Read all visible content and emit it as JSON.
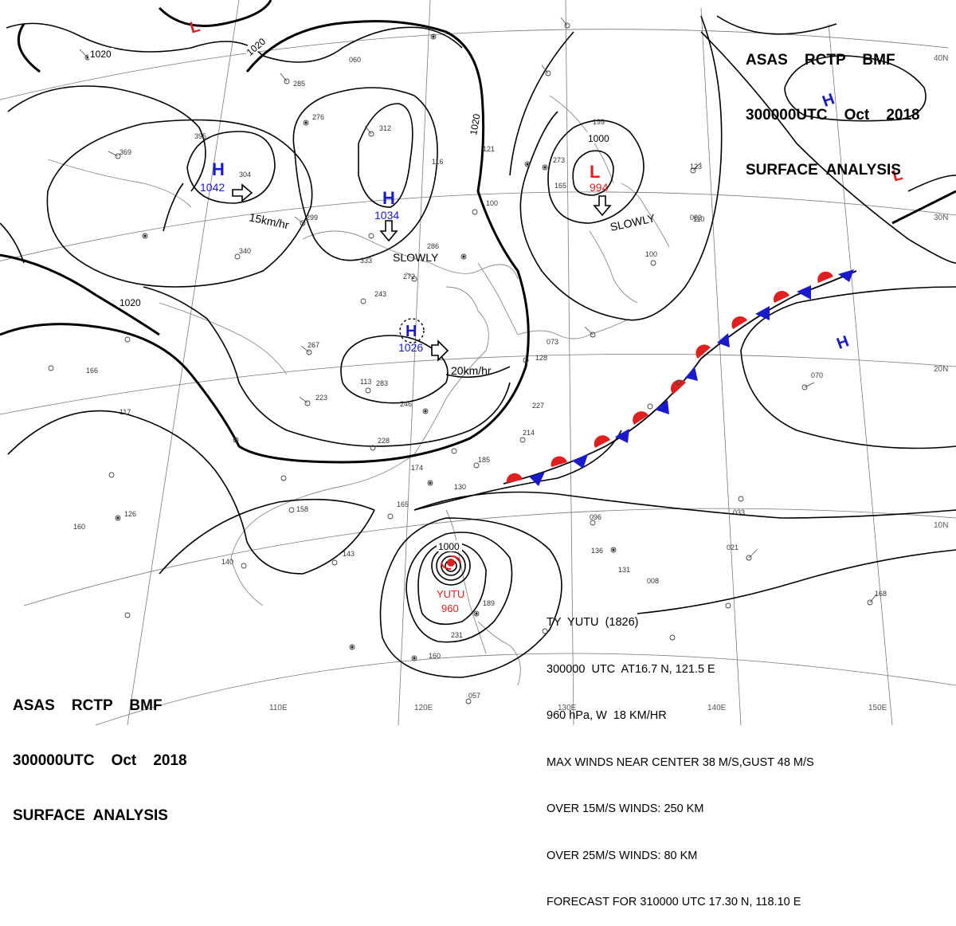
{
  "header_top_right": {
    "line1": "ASAS    RCTP    BMF",
    "line2": "300000UTC    Oct    2018",
    "line3": "SURFACE  ANALYSIS"
  },
  "header_bottom_left": {
    "line1": "ASAS    RCTP    BMF",
    "line2": "300000UTC    Oct    2018",
    "line3": "SURFACE  ANALYSIS"
  },
  "latitude_labels": [
    "40N",
    "30N",
    "20N",
    "10N"
  ],
  "longitude_labels": [
    "110E",
    "120E",
    "130E",
    "140E",
    "150E"
  ],
  "isobar_labels": [
    "1020",
    "1020",
    "1020",
    "1020",
    "1000",
    "1000"
  ],
  "pressure_centers": [
    {
      "type": "H",
      "value": "1042",
      "color": "#1a1acc"
    },
    {
      "type": "H",
      "value": "1034",
      "color": "#1a1acc"
    },
    {
      "type": "H",
      "value": "1026",
      "color": "#1a1acc"
    },
    {
      "type": "L",
      "value": "994",
      "color": "#e02020"
    },
    {
      "type": "L",
      "value": "",
      "color": "#e02020"
    },
    {
      "type": "L",
      "value": "",
      "color": "#e02020"
    },
    {
      "type": "H",
      "value": "",
      "color": "#1a1acc"
    },
    {
      "type": "H",
      "value": "",
      "color": "#1a1acc"
    }
  ],
  "movement_labels": [
    "15km/hr",
    "SLOWLY",
    "20km/hr",
    "SLOWLY"
  ],
  "typhoon": {
    "name": "YUTU",
    "pressure": "960",
    "color": "#e02020",
    "bulletin": [
      "TY  YUTU  (1826)",
      "300000  UTC  AT16.7 N, 121.5 E",
      "960 hPa, W  18 KM/HR",
      "MAX WINDS NEAR CENTER 38 M/S,GUST 48 M/S",
      "OVER 15M/S WINDS: 250 KM",
      "OVER 25M/S WINDS: 80 KM",
      "FORECAST FOR 310000 UTC 17.30 N, 118.10 E"
    ]
  },
  "front": {
    "type": "stationary",
    "warm_color": "#e02020",
    "cold_color": "#1a1acc"
  },
  "station_samples": [
    "285",
    "276",
    "312",
    "304",
    "395",
    "369",
    "299",
    "340",
    "333",
    "286",
    "272",
    "243",
    "267",
    "223",
    "283",
    "246",
    "228",
    "227",
    "214",
    "185",
    "174",
    "165",
    "158",
    "130",
    "160",
    "117",
    "140",
    "143",
    "126",
    "123",
    "110",
    "096",
    "136",
    "131",
    "189",
    "231",
    "160",
    "057",
    "070",
    "082",
    "100",
    "168",
    "060",
    "100",
    "121",
    "116",
    "273",
    "199",
    "165",
    "128",
    "073",
    "021",
    "008",
    "033",
    "166",
    "113"
  ]
}
